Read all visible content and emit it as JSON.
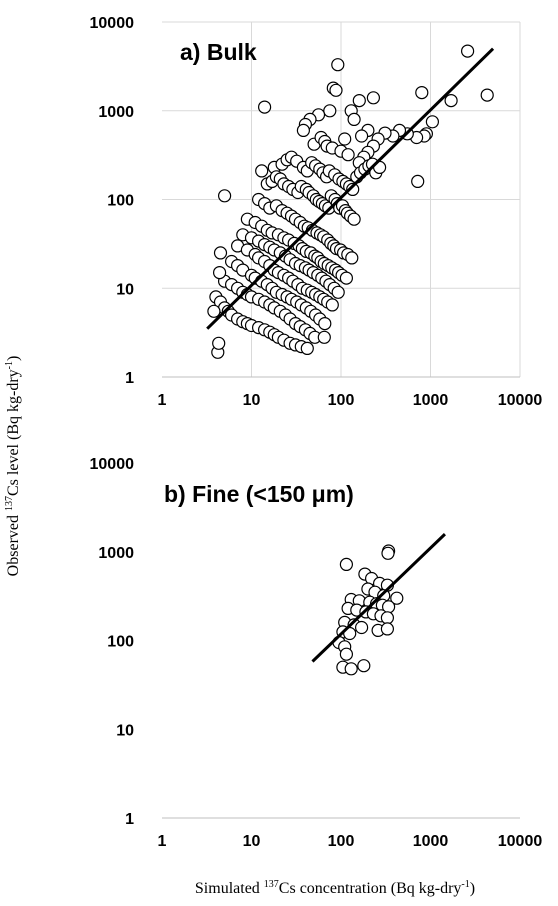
{
  "figure": {
    "ylabel_prefix": "Observed ",
    "ylabel_sup": "137",
    "ylabel_main": "Cs level (Bq kg-dry",
    "ylabel_sup2": "-1",
    "ylabel_end": ")",
    "xlabel_prefix": "Simulated ",
    "xlabel_sup": "137",
    "xlabel_main": "Cs concentration (Bq kg-dry",
    "xlabel_sup2": "-1",
    "xlabel_end": ")"
  },
  "chart_data": [
    {
      "type": "scatter",
      "title": "a) Bulk",
      "xscale": "log",
      "yscale": "log",
      "xlim": [
        1,
        10000
      ],
      "ylim": [
        1,
        10000
      ],
      "grid": true,
      "tick_labels": [
        "1",
        "10",
        "100",
        "1000",
        "10000"
      ],
      "fit_line": {
        "x": [
          3.2,
          5000
        ],
        "y": [
          3.5,
          5000
        ]
      },
      "x": [
        2600,
        4300,
        1700,
        800,
        1050,
        900,
        850,
        700,
        720,
        550,
        450,
        380,
        310,
        260,
        230,
        200,
        180,
        160,
        14,
        13,
        92,
        82,
        88,
        75,
        56,
        45,
        40,
        38,
        130,
        160,
        230,
        140,
        200,
        170,
        110,
        50,
        60,
        66,
        70,
        80,
        100,
        120,
        18,
        22,
        25,
        28,
        32,
        38,
        42,
        47,
        52,
        58,
        63,
        69,
        74,
        85,
        95,
        105,
        115,
        125,
        135,
        150,
        165,
        185,
        205,
        225,
        245,
        270,
        15,
        17,
        19,
        21,
        23,
        26,
        29,
        33,
        36,
        41,
        44,
        49,
        53,
        57,
        62,
        67,
        73,
        78,
        86,
        91,
        97,
        104,
        112,
        118,
        128,
        140,
        12,
        14,
        16,
        19,
        22,
        25,
        28,
        31,
        35,
        39,
        43,
        48,
        54,
        59,
        64,
        71,
        77,
        83,
        89,
        99,
        107,
        119,
        132,
        9,
        11,
        13,
        15,
        17,
        20,
        23,
        26,
        30,
        34,
        37,
        41,
        46,
        51,
        55,
        60,
        65,
        72,
        79,
        87,
        94,
        103,
        115,
        8,
        10,
        12,
        14,
        16,
        18,
        21,
        24,
        27,
        31,
        35,
        40,
        44,
        49,
        55,
        61,
        68,
        75,
        84,
        93,
        7,
        9,
        11,
        12,
        14,
        16,
        18,
        20,
        23,
        26,
        29,
        33,
        37,
        42,
        47,
        52,
        58,
        64,
        71,
        80,
        6,
        7,
        8,
        10,
        11,
        13,
        15,
        17,
        19,
        22,
        25,
        28,
        32,
        36,
        41,
        46,
        52,
        58,
        66,
        5,
        6,
        7,
        8,
        9,
        10,
        12,
        14,
        16,
        18,
        21,
        24,
        27,
        31,
        35,
        40,
        45,
        51,
        4,
        4.5,
        5,
        5.5,
        6,
        7,
        8,
        9,
        10,
        12,
        14,
        16,
        18,
        20,
        23,
        27,
        31,
        36,
        42,
        65,
        5,
        4.4,
        4.5,
        3.8,
        4.2,
        4.3
      ],
      "y": [
        4700,
        1500,
        1300,
        1600,
        750,
        550,
        520,
        500,
        160,
        550,
        600,
        520,
        560,
        480,
        400,
        340,
        300,
        260,
        1100,
        210,
        3300,
        1800,
        1700,
        1000,
        900,
        800,
        700,
        600,
        1000,
        1300,
        1400,
        800,
        600,
        520,
        480,
        420,
        500,
        450,
        400,
        380,
        350,
        320,
        230,
        250,
        280,
        300,
        270,
        230,
        210,
        260,
        240,
        220,
        200,
        180,
        210,
        190,
        170,
        160,
        150,
        140,
        130,
        180,
        200,
        220,
        240,
        250,
        200,
        230,
        150,
        160,
        180,
        170,
        150,
        140,
        130,
        120,
        140,
        130,
        120,
        110,
        100,
        95,
        90,
        85,
        80,
        110,
        100,
        90,
        80,
        85,
        75,
        70,
        65,
        60,
        100,
        90,
        80,
        85,
        75,
        70,
        65,
        60,
        55,
        50,
        48,
        45,
        42,
        40,
        38,
        35,
        32,
        30,
        28,
        27,
        25,
        24,
        22,
        60,
        55,
        50,
        45,
        42,
        40,
        37,
        35,
        32,
        30,
        28,
        26,
        25,
        23,
        22,
        20,
        19,
        18,
        17,
        16,
        15,
        14,
        13,
        40,
        37,
        34,
        31,
        29,
        27,
        25,
        23,
        21,
        19,
        18,
        17,
        16,
        15,
        14,
        13,
        12,
        11,
        10,
        9,
        30,
        27,
        24,
        22,
        20,
        18,
        16,
        15,
        14,
        13,
        12,
        11,
        10,
        9.5,
        9,
        8.5,
        8,
        7.5,
        7,
        6.5,
        20,
        18,
        16,
        14,
        13,
        12,
        11,
        10,
        9,
        8.5,
        8,
        7.5,
        7,
        6.5,
        6,
        5.5,
        5,
        4.5,
        4,
        12,
        11,
        10,
        9,
        8.5,
        8,
        7.5,
        7,
        6.5,
        6,
        5.5,
        5,
        4.5,
        4,
        3.7,
        3.4,
        3.1,
        2.8,
        8,
        7,
        6,
        5.5,
        5,
        4.5,
        4.2,
        4,
        3.8,
        3.6,
        3.4,
        3.2,
        3,
        2.8,
        2.6,
        2.4,
        2.3,
        2.2,
        2.1,
        2.8,
        110,
        15,
        25,
        5.5,
        1.9,
        2.4
      ]
    },
    {
      "type": "scatter",
      "title": "b) Fine (<150 μm)",
      "xscale": "log",
      "yscale": "log",
      "xlim": [
        1,
        10000
      ],
      "ylim": [
        1,
        10000
      ],
      "grid": false,
      "tick_labels": [
        "1",
        "10",
        "100",
        "1000",
        "10000"
      ],
      "fit_line": {
        "x": [
          48,
          1450
        ],
        "y": [
          58,
          1580
        ]
      },
      "x": [
        340,
        335,
        115,
        185,
        220,
        270,
        330,
        200,
        240,
        300,
        420,
        130,
        160,
        210,
        250,
        290,
        340,
        120,
        150,
        190,
        230,
        280,
        330,
        110,
        140,
        170,
        260,
        330,
        105,
        125,
        95,
        110,
        105,
        130,
        115,
        180
      ],
      "y": [
        1020,
        960,
        720,
        560,
        500,
        440,
        420,
        380,
        350,
        320,
        300,
        290,
        280,
        270,
        260,
        250,
        240,
        230,
        220,
        210,
        200,
        190,
        180,
        160,
        150,
        140,
        130,
        135,
        125,
        120,
        95,
        85,
        50,
        48,
        70,
        52
      ]
    }
  ]
}
